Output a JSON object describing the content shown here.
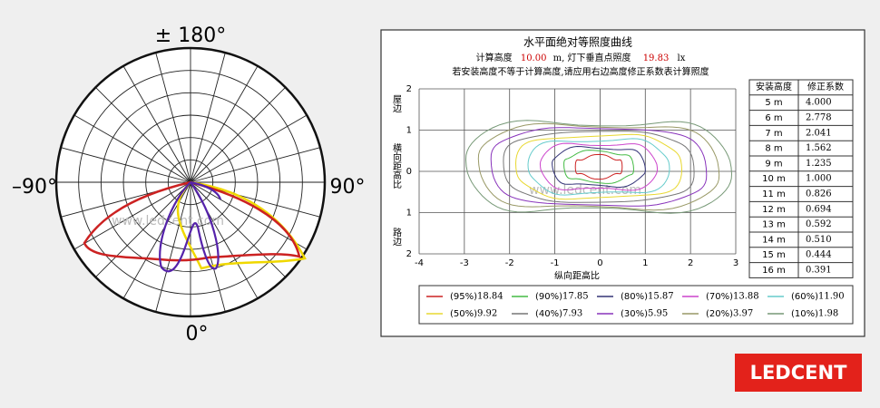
{
  "chart_data": [
    {
      "type": "polar",
      "labels": {
        "top": "± 180°",
        "left": "–90°",
        "right": "90°",
        "bottom": "0°"
      },
      "watermark": "www.ledcent.com"
    },
    {
      "type": "contour",
      "title": "水平面绝对等照度曲线",
      "subtitle": {
        "prefix": "计算高度",
        "height": "10.00",
        "middle": "m, 灯下垂直点照度",
        "illuminance": "19.83",
        "unit": "lx"
      },
      "note": "若安装高度不等于计算高度,请应用右边高度修正系数表计算照度",
      "xlabel": "纵向距高比",
      "ylabel": {
        "top": "屋边",
        "middle": "横向距高比",
        "bottom": "路边"
      },
      "xlim": [
        -4,
        3
      ],
      "ylim": [
        -2,
        2
      ],
      "xticks": [
        -4,
        -3,
        -2,
        -1,
        0,
        1,
        2,
        3
      ],
      "yticks": [
        {
          "value": -2,
          "label": "2"
        },
        {
          "value": -1,
          "label": "1"
        },
        0,
        1,
        2
      ],
      "grid": true,
      "watermark": "www.ledcent.com",
      "levels": [
        {
          "label": "(95%)",
          "value": 18.84,
          "value_label": "18.84",
          "color": "#cc2222"
        },
        {
          "label": "(90%)",
          "value": 17.85,
          "value_label": "17.85",
          "color": "#44bb44"
        },
        {
          "label": "(80%)",
          "value": 15.87,
          "value_label": "15.87",
          "color": "#333377"
        },
        {
          "label": "(70%)",
          "value": 13.88,
          "value_label": "13.88",
          "color": "#cc44cc"
        },
        {
          "label": "(60%)",
          "value": 11.9,
          "value_label": "11.90",
          "color": "#66cccc"
        },
        {
          "label": "(50%)",
          "value": 9.92,
          "value_label": "9.92",
          "color": "#e8d830"
        },
        {
          "label": "(40%)",
          "value": 7.93,
          "value_label": "7.93",
          "color": "#777777"
        },
        {
          "label": "(30%)",
          "value": 5.95,
          "value_label": "5.95",
          "color": "#8833bb"
        },
        {
          "label": "(20%)",
          "value": 3.97,
          "value_label": "3.97",
          "color": "#999966"
        },
        {
          "label": "(10%)",
          "value": 1.98,
          "value_label": "1.98",
          "color": "#779977"
        }
      ]
    }
  ],
  "table": {
    "header": [
      "安装高度",
      "修正系数"
    ],
    "rows": [
      [
        "5 m",
        "4.000"
      ],
      [
        "6 m",
        "2.778"
      ],
      [
        "7 m",
        "2.041"
      ],
      [
        "8 m",
        "1.562"
      ],
      [
        "9 m",
        "1.235"
      ],
      [
        "10 m",
        "1.000"
      ],
      [
        "11 m",
        "0.826"
      ],
      [
        "12 m",
        "0.694"
      ],
      [
        "13 m",
        "0.592"
      ],
      [
        "14 m",
        "0.510"
      ],
      [
        "15 m",
        "0.444"
      ],
      [
        "16 m",
        "0.391"
      ]
    ]
  },
  "logo": "LEDCENT"
}
